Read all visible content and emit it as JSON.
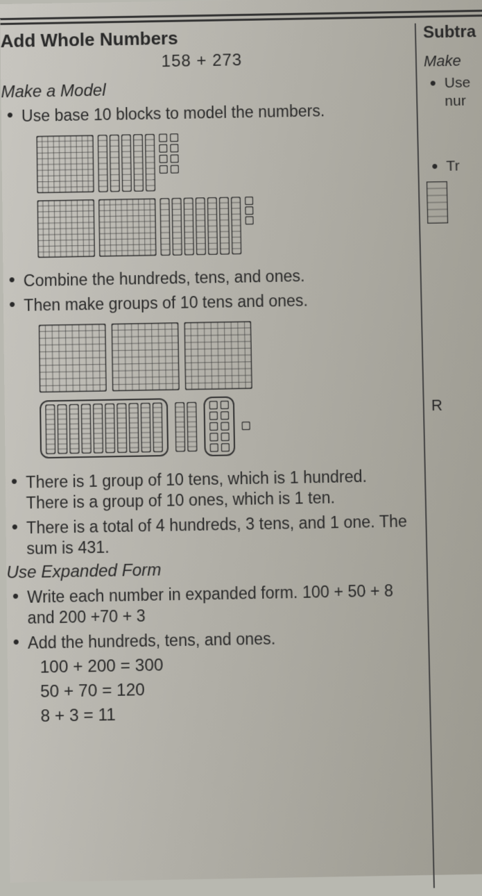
{
  "colors": {
    "stroke": "#333333",
    "fill": "#c0beb4",
    "text": "#2a2a2a"
  },
  "main": {
    "title": "Add Whole Numbers",
    "expression": "158 + 273",
    "sub1": "Make a Model",
    "bullets1": [
      "Use base 10 blocks to model the numbers."
    ],
    "model1": {
      "row1": {
        "hundreds": 1,
        "tens": 5,
        "ones": 8,
        "ones_layout": "2col"
      },
      "row2": {
        "hundreds": 2,
        "tens": 7,
        "ones": 3,
        "ones_layout": "1col"
      }
    },
    "bullets2": [
      "Combine the hundreds, tens, and ones.",
      "Then make groups of 10 tens and ones."
    ],
    "model2": {
      "hundreds_row": 3,
      "tens_grouped": 10,
      "tens_loose": 2,
      "ones_grouped": 10,
      "ones_loose": 1
    },
    "bullets3": [
      "There is 1 group of 10 tens, which is 1 hundred. There is a group of 10 ones, which is 1 ten.",
      "There is a total of 4 hundreds, 3 tens, and 1 one. The sum is 431."
    ],
    "sub2": "Use Expanded Form",
    "bullets4": [
      "Write each number in expanded form. 100 + 50 + 8 and 200 +70 + 3",
      "Add the hundreds, tens, and ones."
    ],
    "equations": [
      "100 + 200 = 300",
      "50 + 70 = 120",
      "8 + 3 = 11"
    ]
  },
  "side": {
    "title": "Subtra",
    "sub": "Make",
    "bullets1": [
      "Use nur"
    ],
    "bullets2": [
      "Tr"
    ],
    "letter": "R"
  },
  "block_style": {
    "hundred_size": 82,
    "ten_w": 14,
    "ten_h": 82,
    "one_size": 12,
    "cell": 8,
    "stroke_w": 1
  }
}
